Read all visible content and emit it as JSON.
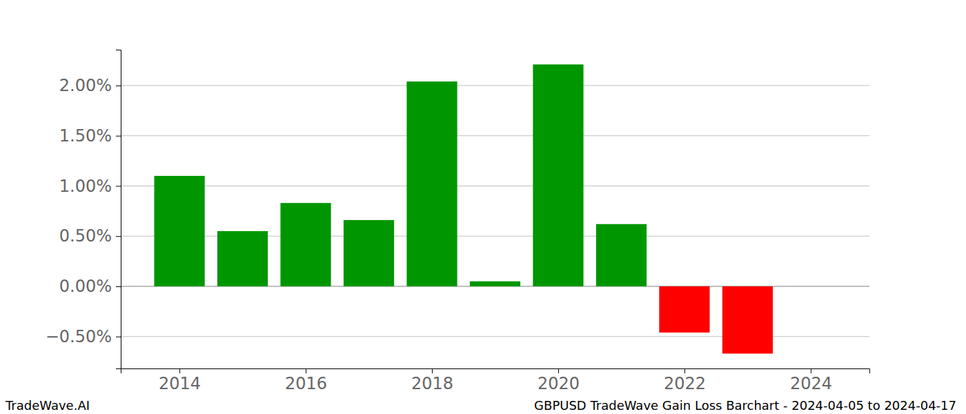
{
  "chart_data": {
    "type": "bar",
    "title": "GBPUSD TradeWave Gain Loss Barchart - 2024-04-05 to 2024-04-17",
    "annotations": [
      "TradeWave.AI"
    ],
    "x": [
      2014,
      2015,
      2016,
      2017,
      2018,
      2019,
      2020,
      2021,
      2022,
      2023
    ],
    "values": [
      1.1,
      0.55,
      0.83,
      0.66,
      2.04,
      0.05,
      2.21,
      0.62,
      -0.46,
      -0.67
    ],
    "colors": [
      "#009600",
      "#009600",
      "#009600",
      "#009600",
      "#009600",
      "#009600",
      "#009600",
      "#009600",
      "#ff0000",
      "#ff0000"
    ],
    "xlim": [
      2013.07,
      2024.93
    ],
    "xticks": [
      2014,
      2016,
      2018,
      2020,
      2022,
      2024
    ],
    "ylim": [
      -0.818,
      2.357
    ],
    "yticks": [
      {
        "value": -0.5,
        "label": "−0.50%"
      },
      {
        "value": 0,
        "label": "0.00%"
      },
      {
        "value": 0.5,
        "label": "0.50%"
      },
      {
        "value": 1,
        "label": "1.00%"
      },
      {
        "value": 1.5,
        "label": "1.50%"
      },
      {
        "value": 2,
        "label": "2.00%"
      }
    ],
    "grid": true
  }
}
